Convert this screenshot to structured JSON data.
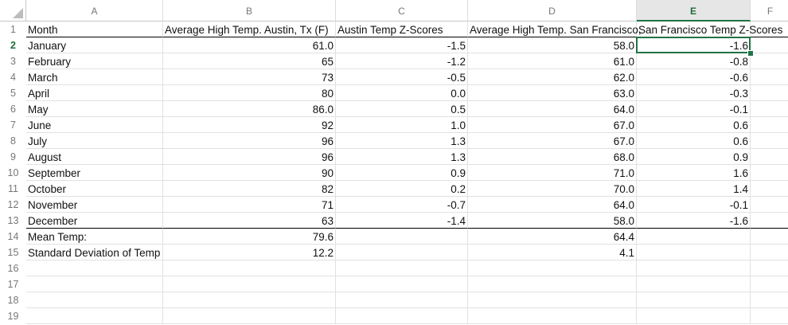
{
  "columns": [
    "A",
    "B",
    "C",
    "D",
    "E",
    "F"
  ],
  "selected_column": "E",
  "selected_row": "2",
  "rows": [
    {
      "n": "1",
      "cells": [
        "Month",
        "Average High Temp. Austin, Tx (F)",
        "Austin Temp Z-Scores",
        "Average High Temp. San Francisco,",
        "San Francisco Temp Z-Scores",
        ""
      ]
    },
    {
      "n": "2",
      "cells": [
        "January",
        "61.0",
        "-1.5",
        "58.0",
        "-1.6",
        ""
      ]
    },
    {
      "n": "3",
      "cells": [
        "February",
        "65",
        "-1.2",
        "61.0",
        "-0.8",
        ""
      ]
    },
    {
      "n": "4",
      "cells": [
        "March",
        "73",
        "-0.5",
        "62.0",
        "-0.6",
        ""
      ]
    },
    {
      "n": "5",
      "cells": [
        "April",
        "80",
        "0.0",
        "63.0",
        "-0.3",
        ""
      ]
    },
    {
      "n": "6",
      "cells": [
        "May",
        "86.0",
        "0.5",
        "64.0",
        "-0.1",
        ""
      ]
    },
    {
      "n": "7",
      "cells": [
        "June",
        "92",
        "1.0",
        "67.0",
        "0.6",
        ""
      ]
    },
    {
      "n": "8",
      "cells": [
        "July",
        "96",
        "1.3",
        "67.0",
        "0.6",
        ""
      ]
    },
    {
      "n": "9",
      "cells": [
        "August",
        "96",
        "1.3",
        "68.0",
        "0.9",
        ""
      ]
    },
    {
      "n": "10",
      "cells": [
        "September",
        "90",
        "0.9",
        "71.0",
        "1.6",
        ""
      ]
    },
    {
      "n": "11",
      "cells": [
        "October",
        "82",
        "0.2",
        "70.0",
        "1.4",
        ""
      ]
    },
    {
      "n": "12",
      "cells": [
        "November",
        "71",
        "-0.7",
        "64.0",
        "-0.1",
        ""
      ]
    },
    {
      "n": "13",
      "cells": [
        "December",
        "63",
        "-1.4",
        "58.0",
        "-1.6",
        ""
      ]
    },
    {
      "n": "14",
      "cells": [
        "Mean Temp:",
        "79.6",
        "",
        "64.4",
        "",
        ""
      ]
    },
    {
      "n": "15",
      "cells": [
        "Standard Deviation of Temp",
        "12.2",
        "",
        "4.1",
        "",
        ""
      ]
    },
    {
      "n": "16",
      "cells": [
        "",
        "",
        "",
        "",
        "",
        ""
      ]
    },
    {
      "n": "17",
      "cells": [
        "",
        "",
        "",
        "",
        "",
        ""
      ]
    },
    {
      "n": "18",
      "cells": [
        "",
        "",
        "",
        "",
        "",
        ""
      ]
    },
    {
      "n": "19",
      "cells": [
        "",
        "",
        "",
        "",
        "",
        ""
      ]
    }
  ]
}
